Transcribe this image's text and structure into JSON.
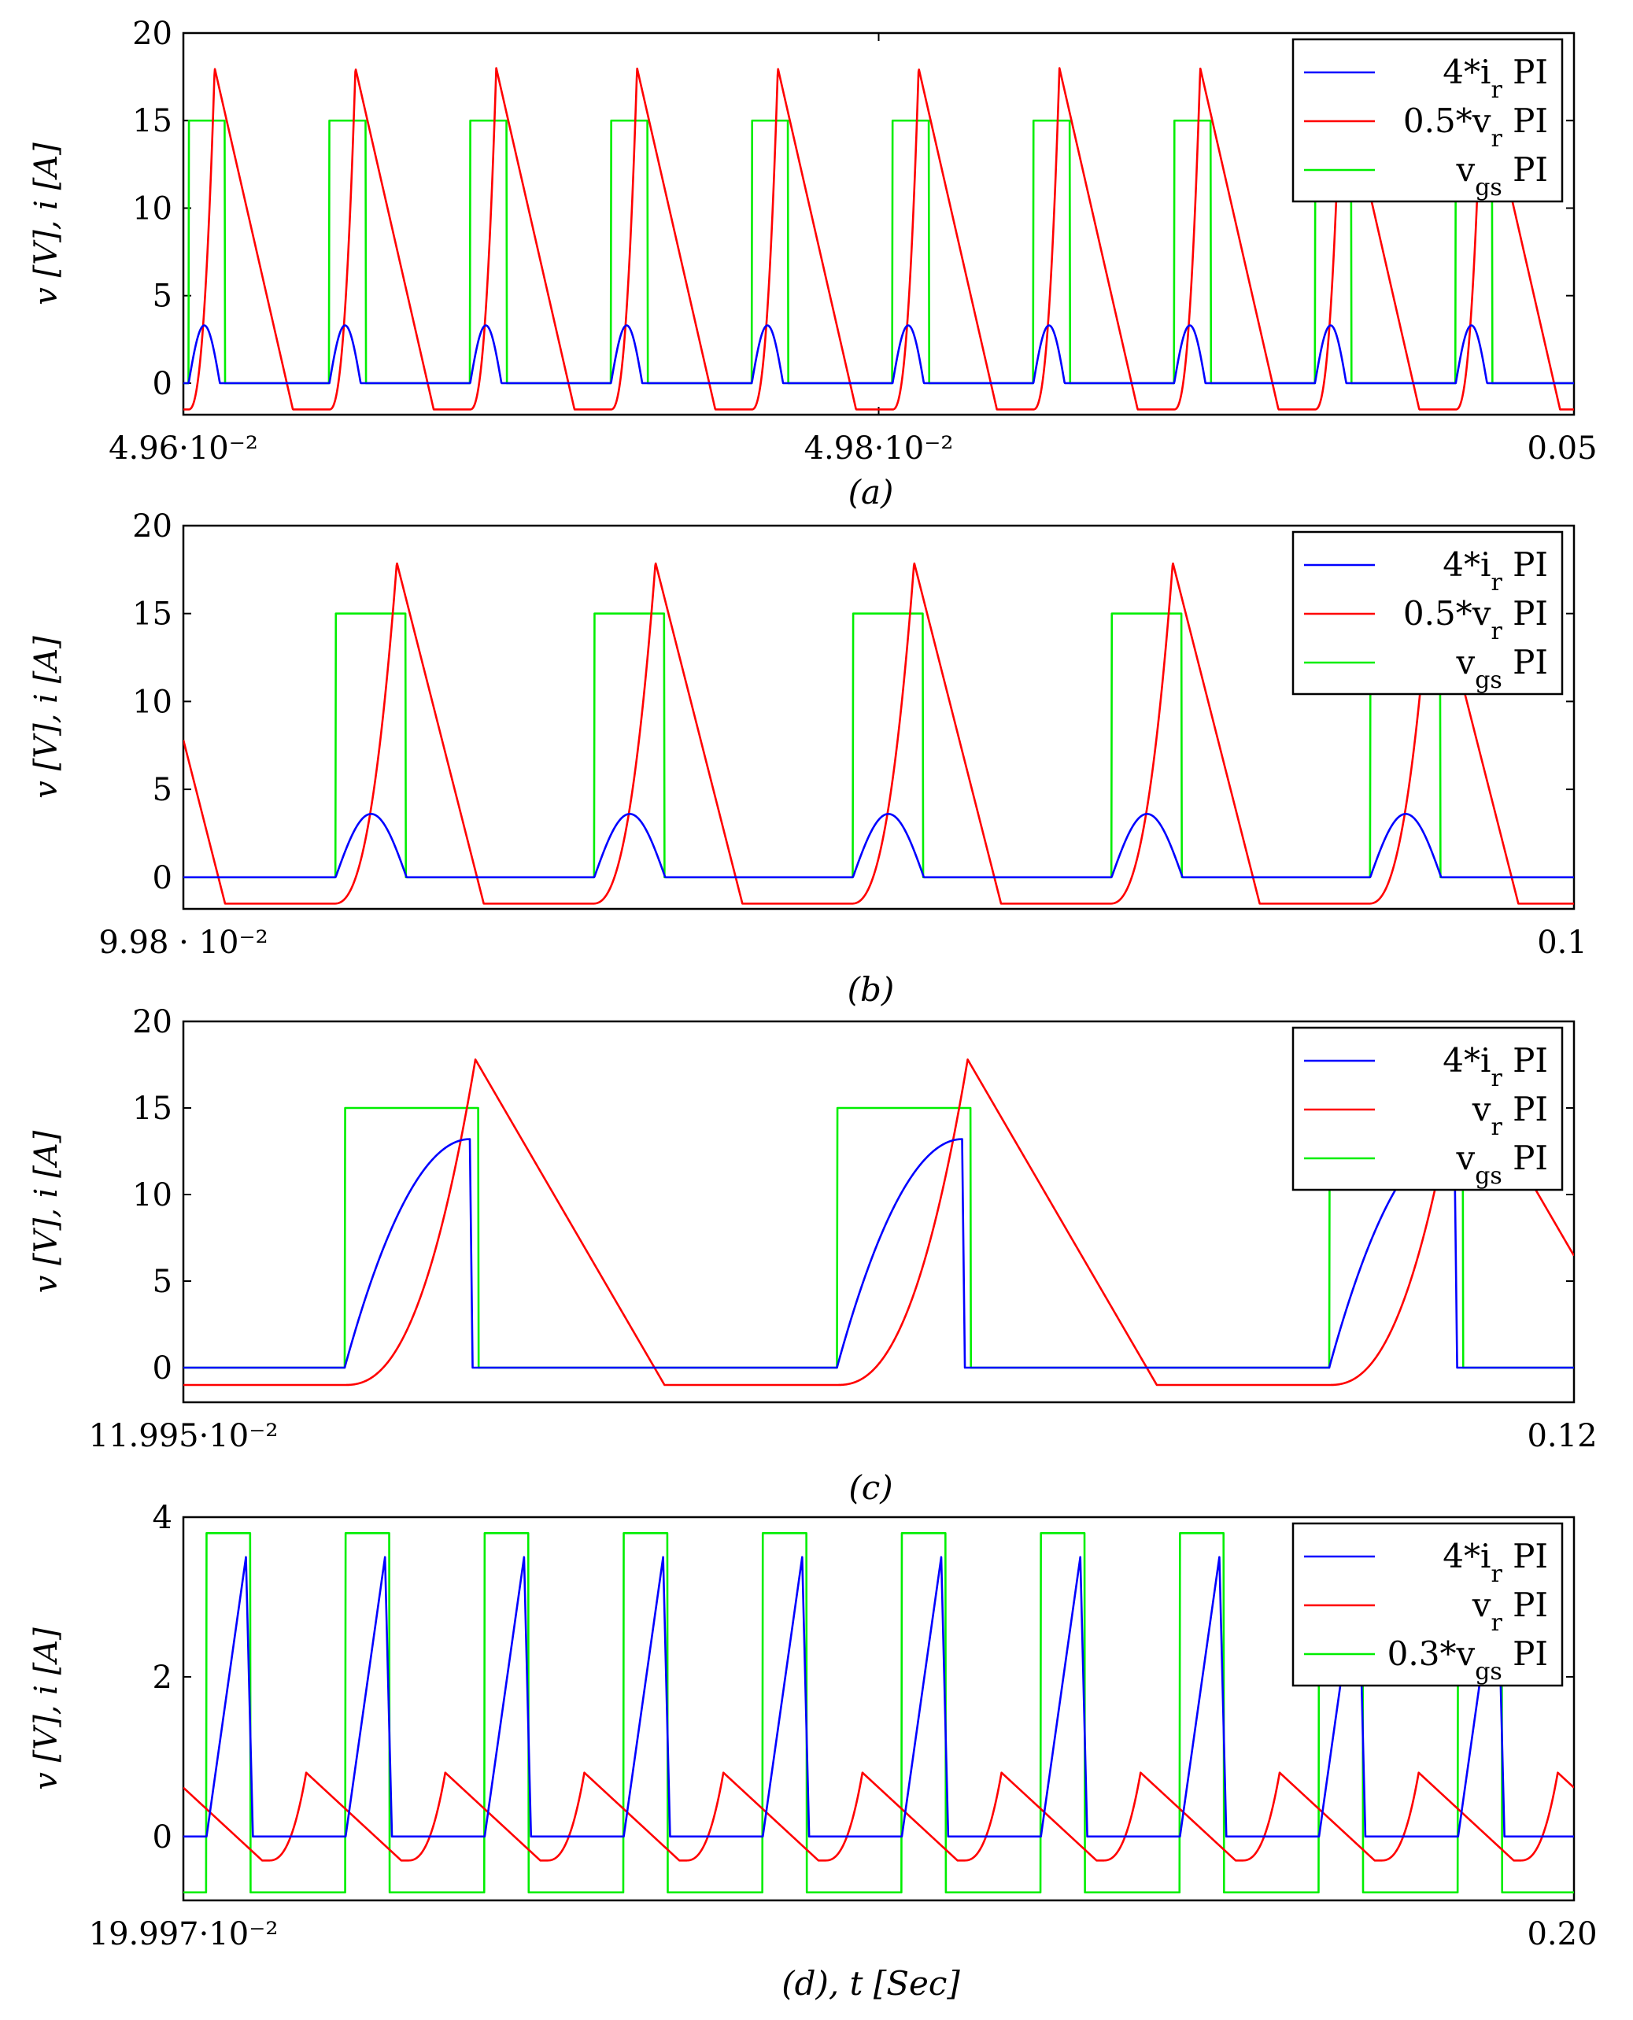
{
  "chart_data": [
    {
      "type": "line",
      "caption": "(a)",
      "ylabel": "v [V], i [A]",
      "xlim": [
        0.0496,
        0.05
      ],
      "ylim": [
        -1.8,
        20
      ],
      "y_ticks": [
        "0",
        "5",
        "10",
        "15",
        "20"
      ],
      "x_ticks": [
        "4.96·10⁻²",
        "4.98·10⁻²",
        "0.05"
      ],
      "legend_position": "top-right",
      "waveform": {
        "period": 4.05e-05,
        "gate_on": 1.5e-06,
        "gate_width": 1.05e-05,
        "ramp_start": 1.5e-06,
        "peak_time": 9e-06,
        "ramp_end": 3.15e-05,
        "cur_start": 1.5e-06,
        "cur_peak_time": 6e-06,
        "cur_end": 1.05e-05,
        "cur_shape": "sine"
      },
      "series": [
        {
          "name": "4*ir PI",
          "label_main": "4*i",
          "label_sub": "r",
          "label_tail": " PI",
          "color": "#0000ff",
          "role": "current",
          "peak": 3.3,
          "low": 0,
          "values": [
            0,
            3.3,
            0
          ]
        },
        {
          "name": "0.5*vr PI",
          "label_main": "0.5*v",
          "label_sub": "r",
          "label_tail": " PI",
          "color": "#ff0000",
          "role": "voltage",
          "peak": 18,
          "low": -1.5,
          "values": [
            -1.5,
            18,
            -1.5
          ]
        },
        {
          "name": "vgs PI",
          "label_main": "v",
          "label_sub": "gs",
          "label_tail": " PI",
          "color": "#00ee00",
          "role": "gate",
          "high": 15,
          "low": 0,
          "values": [
            0,
            15,
            0
          ]
        }
      ]
    },
    {
      "type": "line",
      "caption": "(b)",
      "ylabel": "v [V], i [A]",
      "xlim": [
        0.0998,
        0.1
      ],
      "ylim": [
        -1.8,
        20
      ],
      "y_ticks": [
        "0",
        "5",
        "10",
        "15",
        "20"
      ],
      "x_ticks": [
        "9.98 · 10⁻²",
        "0.1"
      ],
      "legend_position": "top-right",
      "waveform": {
        "period": 3.72e-05,
        "gate_on": 2.19e-05,
        "gate_width": 1.01e-05,
        "ramp_start": 2.17e-05,
        "peak_time": 3.07e-05,
        "ramp_end": 4.32e-05,
        "cur_start": 2.19e-05,
        "cur_peak_time": 2.62e-05,
        "cur_end": 3.21e-05,
        "cur_shape": "sine"
      },
      "series": [
        {
          "name": "4*ir PI",
          "label_main": "4*i",
          "label_sub": "r",
          "label_tail": " PI",
          "color": "#0000ff",
          "role": "current",
          "peak": 3.6,
          "low": 0,
          "values": [
            0,
            3.6,
            0
          ]
        },
        {
          "name": "0.5*vr PI",
          "label_main": "0.5*v",
          "label_sub": "r",
          "label_tail": " PI",
          "color": "#ff0000",
          "role": "voltage",
          "peak": 17.9,
          "low": -1.5,
          "values": [
            -1.5,
            17.9,
            -1.5
          ]
        },
        {
          "name": "vgs PI",
          "label_main": "v",
          "label_sub": "gs",
          "label_tail": " PI",
          "color": "#00ee00",
          "role": "gate",
          "high": 15,
          "low": 0,
          "values": [
            0,
            15,
            0
          ]
        }
      ]
    },
    {
      "type": "line",
      "caption": "(c)",
      "ylabel": "v [V], i [A]",
      "xlim": [
        0.11995,
        0.12
      ],
      "ylim": [
        -2,
        20
      ],
      "y_ticks": [
        "0",
        "5",
        "10",
        "15",
        "20"
      ],
      "x_ticks": [
        "11.995·10⁻²",
        "0.12"
      ],
      "legend_position": "top-right",
      "waveform": {
        "period": 1.77e-05,
        "gate_on": 5.8e-06,
        "gate_width": 4.8e-06,
        "ramp_start": 5.8e-06,
        "peak_time": 1.05e-05,
        "ramp_end": 1.73e-05,
        "cur_start": 5.8e-06,
        "cur_peak_time": 1.03e-05,
        "cur_end": 1.04e-05,
        "cur_shape": "rise"
      },
      "series": [
        {
          "name": "4*ir PI",
          "label_main": "4*i",
          "label_sub": "r",
          "label_tail": " PI",
          "color": "#0000ff",
          "role": "current",
          "peak": 13.2,
          "low": 0,
          "values": [
            0,
            13.2,
            0
          ]
        },
        {
          "name": "vr PI",
          "label_main": "v",
          "label_sub": "r",
          "label_tail": " PI",
          "color": "#ff0000",
          "role": "voltage",
          "peak": 17.8,
          "low": -1,
          "values": [
            -1,
            17.8,
            -1
          ]
        },
        {
          "name": "vgs PI",
          "label_main": "v",
          "label_sub": "gs",
          "label_tail": " PI",
          "color": "#00ee00",
          "role": "gate",
          "high": 15,
          "low": 0,
          "values": [
            0,
            15,
            0
          ]
        }
      ]
    },
    {
      "type": "line",
      "caption": "(d), t [Sec]",
      "ylabel": "v [V], i [A]",
      "xlim": [
        0.19997,
        0.2
      ],
      "ylim": [
        -0.8,
        4
      ],
      "y_ticks": [
        "0",
        "2",
        "4"
      ],
      "x_ticks": [
        "19.997·10⁻²",
        "0.20"
      ],
      "legend_position": "top-right",
      "waveform": {
        "period": 3e-06,
        "gate_on": 5e-07,
        "gate_width": 9.5e-07,
        "ramp_start": 1.85e-06,
        "peak_time": 2.65e-06,
        "ramp_end": 4.7e-06,
        "cur_start": 5e-07,
        "cur_peak_time": 1.35e-06,
        "cur_end": 1.5e-06,
        "cur_shape": "linear"
      },
      "series": [
        {
          "name": "4*ir PI",
          "label_main": "4*i",
          "label_sub": "r",
          "label_tail": " PI",
          "color": "#0000ff",
          "role": "current",
          "peak": 3.5,
          "low": 0,
          "values": [
            0,
            3.5,
            0
          ]
        },
        {
          "name": "vr PI",
          "label_main": "v",
          "label_sub": "r",
          "label_tail": " PI",
          "color": "#ff0000",
          "role": "voltage",
          "peak": 0.8,
          "low": -0.3,
          "values": [
            -0.3,
            0.8,
            -0.3
          ]
        },
        {
          "name": "0.3*vgs PI",
          "label_main": "0.3*v",
          "label_sub": "gs",
          "label_tail": " PI",
          "color": "#00ee00",
          "role": "gate",
          "high": 3.8,
          "low": -0.7,
          "values": [
            -0.7,
            3.8,
            -0.7
          ]
        }
      ]
    }
  ]
}
